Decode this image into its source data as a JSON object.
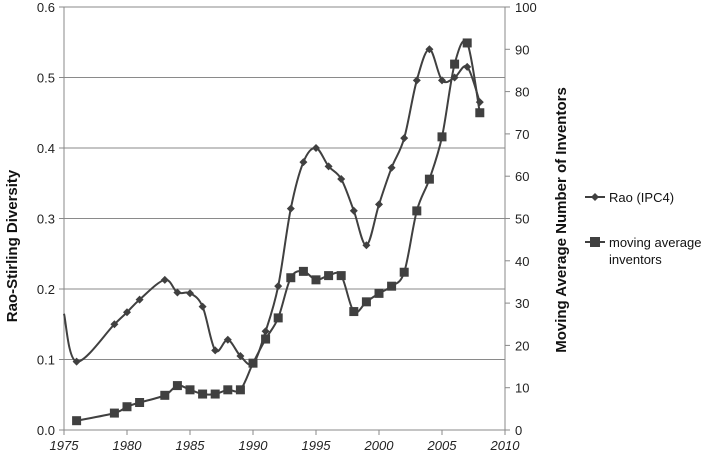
{
  "chart_data": {
    "type": "line",
    "title": "",
    "xlabel": "",
    "ylabel": "Rao-Stirling Diversity",
    "y2label": "Moving Average Number of Inventors",
    "xlim": [
      1975,
      2010
    ],
    "ylim": [
      0,
      0.6
    ],
    "y2lim": [
      0,
      100
    ],
    "xticks": [
      "1975",
      "1980",
      "1985",
      "1990",
      "1995",
      "2000",
      "2005",
      "2010"
    ],
    "yticks": [
      "0.0",
      "0.1",
      "0.2",
      "0.3",
      "0.4",
      "0.5",
      "0.6"
    ],
    "y2ticks": [
      "0",
      "10",
      "20",
      "30",
      "40",
      "50",
      "60",
      "70",
      "80",
      "90",
      "100"
    ],
    "grid": "horizontal",
    "legend_position": "right",
    "series": [
      {
        "name": "Rao (IPC4)",
        "axis": "left",
        "marker": "diamond",
        "color": "#404040",
        "x": [
          1976,
          1979,
          1980,
          1981,
          1983,
          1984,
          1985,
          1986,
          1987,
          1988,
          1989,
          1990,
          1991,
          1992,
          1993,
          1994,
          1995,
          1996,
          1997,
          1998,
          1999,
          2000,
          2001,
          2002,
          2003,
          2004,
          2005,
          2006,
          2007,
          2008
        ],
        "values": [
          0.097,
          0.15,
          0.167,
          0.185,
          0.213,
          0.195,
          0.194,
          0.175,
          0.113,
          0.128,
          0.105,
          0.094,
          0.14,
          0.204,
          0.314,
          0.38,
          0.4,
          0.374,
          0.356,
          0.311,
          0.262,
          0.32,
          0.372,
          0.414,
          0.496,
          0.54,
          0.496,
          0.5,
          0.515,
          0.465
        ]
      },
      {
        "name": "moving average inventors",
        "axis": "right",
        "marker": "square",
        "color": "#404040",
        "x": [
          1976,
          1979,
          1980,
          1981,
          1983,
          1984,
          1985,
          1986,
          1987,
          1988,
          1989,
          1990,
          1991,
          1992,
          1993,
          1994,
          1995,
          1996,
          1997,
          1998,
          1999,
          2000,
          2001,
          2002,
          2003,
          2004,
          2005,
          2006,
          2007,
          2008
        ],
        "values": [
          2.2,
          4.0,
          5.5,
          6.5,
          8.2,
          10.5,
          9.5,
          8.5,
          8.5,
          9.5,
          9.5,
          15.8,
          21.5,
          26.5,
          36.0,
          37.5,
          35.5,
          36.5,
          36.5,
          28.0,
          30.3,
          32.3,
          34.0,
          37.3,
          51.8,
          59.3,
          69.3,
          86.5,
          91.5,
          75.0
        ]
      }
    ]
  }
}
